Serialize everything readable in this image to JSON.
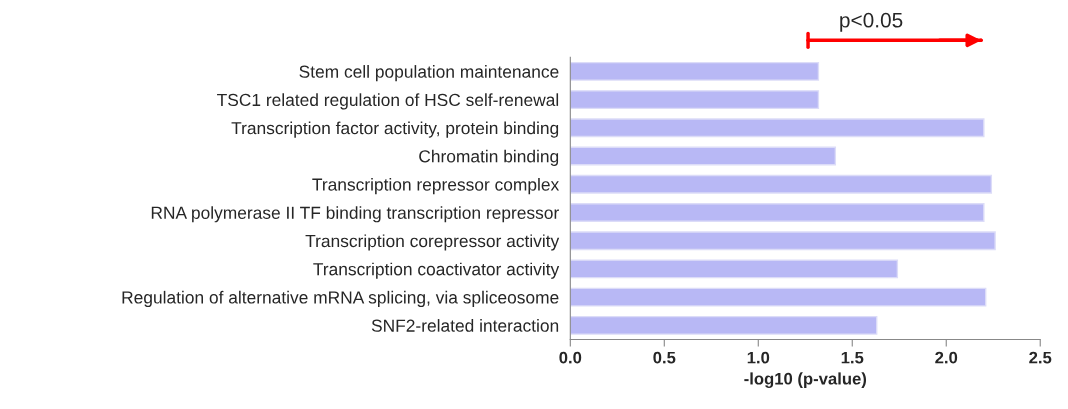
{
  "chart_data": {
    "type": "bar",
    "orientation": "horizontal",
    "categories": [
      "Stem cell population maintenance",
      "TSC1 related regulation of HSC self-renewal",
      "Transcription factor activity, protein binding",
      "Chromatin binding",
      "Transcription repressor complex",
      "RNA polymerase II TF binding transcription repressor",
      "Transcription corepressor activity",
      "Transcription coactivator activity",
      "Regulation of alternative mRNA splicing, via spliceosome",
      "SNF2-related interaction"
    ],
    "values": [
      1.32,
      1.32,
      2.2,
      1.41,
      2.24,
      2.2,
      2.26,
      1.74,
      2.21,
      1.63
    ],
    "color": "#b8b8f5",
    "xlim": [
      0,
      2.5
    ],
    "xticks": [
      {
        "value": 0,
        "label": "0.0"
      },
      0.5,
      {
        "value": 1,
        "label": "1.0"
      },
      1.5,
      {
        "value": 2,
        "label": "2.0"
      },
      2.5
    ],
    "xlabel": "-log10 (p-value)",
    "annotations": [
      "p<0.05"
    ],
    "grid": false,
    "legend": false
  }
}
